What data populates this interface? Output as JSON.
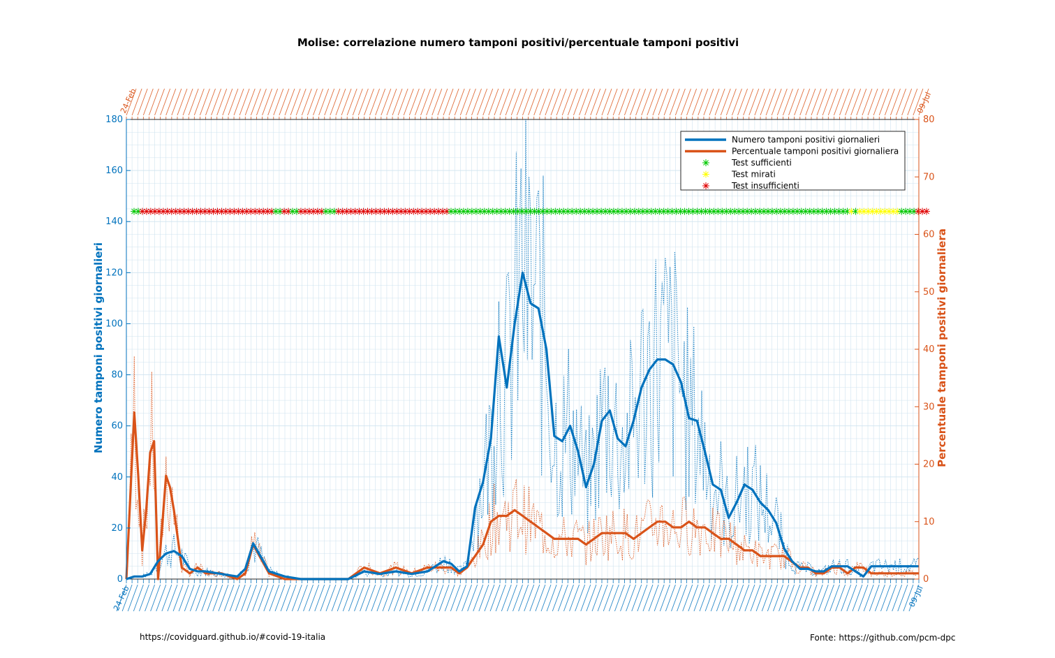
{
  "footer": {
    "left": "https://covidguard.github.io/#covid-19-italia",
    "right": "Fonte: https://github.com/pcm-dpc"
  },
  "colors": {
    "blue": "#0072BD",
    "orange": "#D95319",
    "green": "#00C800",
    "yellow": "#FFFF00",
    "red": "#E00000",
    "grid": "#cfe3ef"
  },
  "chart_data": {
    "type": "line",
    "title": "Molise: correlazione numero tamponi positivi/percentuale tamponi positivi",
    "ylabel_left": "Numero tamponi positivi giornalieri",
    "ylabel_right": "Percentuale tamponi positivi giornaliera",
    "ylim_left": [
      0,
      180
    ],
    "ylim_right": [
      0,
      80
    ],
    "yticks_left": [
      0,
      20,
      40,
      60,
      80,
      100,
      120,
      140,
      160,
      180
    ],
    "yticks_right": [
      0,
      10,
      20,
      30,
      40,
      50,
      60,
      70,
      80
    ],
    "grid": true,
    "legend_position": "top-right",
    "x_start_label": "24-Feb",
    "x_end_label": "09-Jul",
    "legend": [
      {
        "label": "Numero tamponi positivi giornalieri",
        "kind": "line",
        "color": "#0072BD"
      },
      {
        "label": "Percentuale tamponi positivi giornaliera",
        "kind": "line",
        "color": "#D95319"
      },
      {
        "label": "Test sufficienti",
        "kind": "star",
        "color": "#00C800"
      },
      {
        "label": "Test mirati",
        "kind": "star",
        "color": "#FFFF00"
      },
      {
        "label": "Test insufficienti",
        "kind": "star",
        "color": "#E00000"
      }
    ],
    "series_positives_smoothed": {
      "x_frac": [
        0.0,
        0.01,
        0.02,
        0.03,
        0.04,
        0.05,
        0.06,
        0.07,
        0.08,
        0.09,
        0.1,
        0.12,
        0.14,
        0.15,
        0.16,
        0.18,
        0.2,
        0.22,
        0.24,
        0.26,
        0.28,
        0.3,
        0.32,
        0.34,
        0.36,
        0.38,
        0.4,
        0.41,
        0.42,
        0.43,
        0.44,
        0.45,
        0.46,
        0.47,
        0.48,
        0.49,
        0.5,
        0.51,
        0.52,
        0.53,
        0.54,
        0.55,
        0.56,
        0.57,
        0.58,
        0.59,
        0.6,
        0.61,
        0.62,
        0.63,
        0.64,
        0.65,
        0.66,
        0.67,
        0.68,
        0.69,
        0.7,
        0.71,
        0.72,
        0.73,
        0.74,
        0.75,
        0.76,
        0.77,
        0.78,
        0.79,
        0.8,
        0.81,
        0.82,
        0.83,
        0.84,
        0.85,
        0.86,
        0.87,
        0.88,
        0.89,
        0.9,
        0.91,
        0.92,
        0.93,
        0.94,
        0.95,
        0.96,
        0.97,
        0.98,
        0.99,
        1.0
      ],
      "values": [
        0,
        1,
        1,
        2,
        7,
        10,
        11,
        9,
        4,
        3,
        3,
        2,
        1,
        4,
        14,
        3,
        1,
        0,
        0,
        0,
        0,
        3,
        2,
        3,
        2,
        3,
        7,
        6,
        3,
        5,
        28,
        38,
        55,
        95,
        75,
        100,
        120,
        108,
        106,
        90,
        56,
        54,
        60,
        50,
        36,
        45,
        62,
        66,
        55,
        52,
        62,
        75,
        82,
        86,
        86,
        84,
        77,
        63,
        62,
        50,
        37,
        35,
        24,
        30,
        37,
        35,
        30,
        27,
        22,
        12,
        7,
        4,
        4,
        3,
        3,
        5,
        5,
        5,
        3,
        1,
        5,
        5,
        5,
        5,
        5,
        5,
        5
      ]
    },
    "series_percent_smoothed": {
      "x_frac": [
        0.0,
        0.01,
        0.015,
        0.02,
        0.025,
        0.03,
        0.035,
        0.04,
        0.05,
        0.055,
        0.06,
        0.07,
        0.08,
        0.09,
        0.1,
        0.12,
        0.14,
        0.15,
        0.16,
        0.18,
        0.2,
        0.22,
        0.24,
        0.26,
        0.28,
        0.3,
        0.32,
        0.34,
        0.36,
        0.38,
        0.4,
        0.41,
        0.42,
        0.43,
        0.44,
        0.45,
        0.46,
        0.47,
        0.48,
        0.49,
        0.5,
        0.51,
        0.52,
        0.53,
        0.54,
        0.55,
        0.56,
        0.57,
        0.58,
        0.59,
        0.6,
        0.61,
        0.62,
        0.63,
        0.64,
        0.65,
        0.66,
        0.67,
        0.68,
        0.69,
        0.7,
        0.71,
        0.72,
        0.73,
        0.74,
        0.75,
        0.76,
        0.77,
        0.78,
        0.79,
        0.8,
        0.81,
        0.82,
        0.83,
        0.84,
        0.85,
        0.86,
        0.87,
        0.88,
        0.89,
        0.9,
        0.91,
        0.92,
        0.93,
        0.94,
        0.95,
        0.96,
        0.97,
        0.98,
        0.99,
        1.0
      ],
      "values": [
        0,
        29,
        18,
        5,
        12,
        22,
        24,
        0,
        18,
        16,
        12,
        2,
        1,
        2,
        1,
        1,
        0,
        1,
        6,
        1,
        0,
        0,
        0,
        0,
        0,
        2,
        1,
        2,
        1,
        2,
        2,
        2,
        1,
        2,
        4,
        6,
        10,
        11,
        11,
        12,
        11,
        10,
        9,
        8,
        7,
        7,
        7,
        7,
        6,
        7,
        8,
        8,
        8,
        8,
        7,
        8,
        9,
        10,
        10,
        9,
        9,
        10,
        9,
        9,
        8,
        7,
        7,
        6,
        5,
        5,
        4,
        4,
        4,
        4,
        3,
        2,
        2,
        1,
        1,
        2,
        2,
        1,
        2,
        2,
        1,
        1,
        1,
        1,
        1,
        1,
        1
      ]
    },
    "status_band": {
      "y_left": 144,
      "segments": [
        {
          "from": 0.0,
          "to": 0.01,
          "status": "Test sufficienti"
        },
        {
          "from": 0.01,
          "to": 0.175,
          "status": "Test insufficienti"
        },
        {
          "from": 0.175,
          "to": 0.185,
          "status": "Test sufficienti"
        },
        {
          "from": 0.185,
          "to": 0.2,
          "status": "Test insufficienti"
        },
        {
          "from": 0.2,
          "to": 0.21,
          "status": "Test sufficienti"
        },
        {
          "from": 0.21,
          "to": 0.24,
          "status": "Test insufficienti"
        },
        {
          "from": 0.24,
          "to": 0.255,
          "status": "Test sufficienti"
        },
        {
          "from": 0.255,
          "to": 0.4,
          "status": "Test insufficienti"
        },
        {
          "from": 0.4,
          "to": 0.905,
          "status": "Test sufficienti"
        },
        {
          "from": 0.905,
          "to": 0.91,
          "status": "Test mirati"
        },
        {
          "from": 0.91,
          "to": 0.915,
          "status": "Test sufficienti"
        },
        {
          "from": 0.915,
          "to": 0.965,
          "status": "Test mirati"
        },
        {
          "from": 0.965,
          "to": 0.985,
          "status": "Test sufficienti"
        },
        {
          "from": 0.985,
          "to": 1.0,
          "status": "Test insufficienti"
        }
      ]
    }
  }
}
